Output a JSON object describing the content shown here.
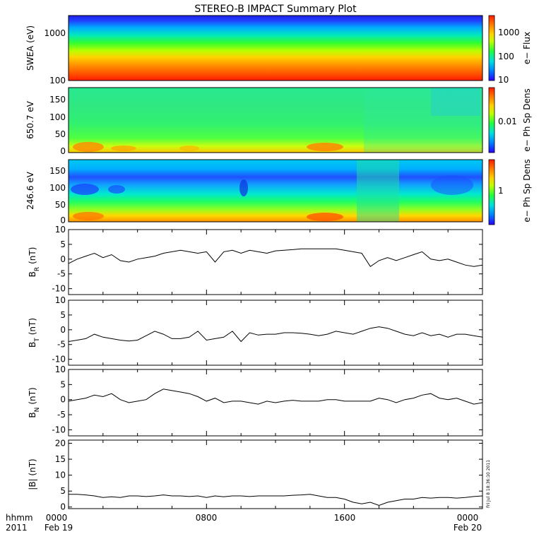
{
  "title": "STEREO-B IMPACT Summary Plot",
  "footer": {
    "row1_left": "hhmm",
    "row2_left": "2011",
    "x_ticks": [
      "0000",
      "0800",
      "1600",
      "0000"
    ],
    "date_start": "Feb 19",
    "date_end": "Feb 20",
    "stamp": "Fri Jul 8 18:36:10 2011"
  },
  "colors": {
    "spectrum": [
      "#1f1fff",
      "#00a0ff",
      "#00e0e0",
      "#30ff30",
      "#c8ff00",
      "#ffd200",
      "#ff8c00",
      "#ff2000"
    ],
    "line": "#000000"
  },
  "chart_data": [
    {
      "type": "heatmap",
      "ylabel": "SWEA (eV)",
      "yscale": "log",
      "ylim": [
        100,
        2000
      ],
      "yticks": [
        "1000",
        "100"
      ],
      "cbar_label": "e− Flux",
      "cbar_ticks": [
        "1000",
        "100",
        "10"
      ]
    },
    {
      "type": "heatmap",
      "ylabel": "650.7 eV",
      "ylim": [
        0,
        180
      ],
      "yticks": [
        "150",
        "100",
        "50",
        "0"
      ],
      "cbar_label": "e− Ph Sp Dens",
      "cbar_ticks": [
        "0.01"
      ]
    },
    {
      "type": "heatmap",
      "ylabel": "246.6 eV",
      "ylim": [
        0,
        180
      ],
      "yticks": [
        "150",
        "100",
        "50",
        "0"
      ],
      "cbar_label": "e− Ph Sp Dens",
      "cbar_ticks": [
        "1"
      ]
    },
    {
      "type": "line",
      "ylabel_main": "B",
      "ylabel_sub": "R",
      "ylabel_unit": "(nT)",
      "ylim": [
        -12,
        10
      ],
      "yticks": [
        "10",
        "5",
        "0",
        "-5",
        "-10"
      ],
      "x_hours": [
        0,
        0.5,
        1,
        1.5,
        2,
        2.5,
        3,
        3.5,
        4,
        4.5,
        5,
        5.5,
        6,
        6.5,
        7,
        7.5,
        8,
        8.5,
        9,
        9.5,
        10,
        10.5,
        11,
        11.5,
        12,
        12.5,
        13,
        13.5,
        14,
        14.5,
        15,
        15.5,
        16,
        16.5,
        17,
        17.5,
        18,
        18.5,
        19,
        19.5,
        20,
        20.5,
        21,
        21.5,
        22,
        22.5,
        23,
        23.5,
        24
      ],
      "values": [
        -1.5,
        0,
        1,
        2,
        0.5,
        1.5,
        -0.5,
        -1,
        0,
        0.5,
        1,
        2,
        2.5,
        3,
        2.5,
        2,
        2.5,
        -1,
        2.5,
        3,
        2,
        3,
        2.5,
        2,
        2.8,
        3,
        3.2,
        3.5,
        3.5,
        3.5,
        3.5,
        3.5,
        3,
        2.5,
        2,
        -2.5,
        -0.5,
        0.5,
        -0.5,
        0.5,
        1.5,
        2.5,
        0,
        -0.5,
        0,
        -1,
        -2,
        -2.5,
        -2
      ]
    },
    {
      "type": "line",
      "ylabel_main": "B",
      "ylabel_sub": "T",
      "ylabel_unit": "(nT)",
      "ylim": [
        -12,
        10
      ],
      "yticks": [
        "10",
        "5",
        "0",
        "-5",
        "-10"
      ],
      "x_hours": [
        0,
        0.5,
        1,
        1.5,
        2,
        2.5,
        3,
        3.5,
        4,
        4.5,
        5,
        5.5,
        6,
        6.5,
        7,
        7.5,
        8,
        8.5,
        9,
        9.5,
        10,
        10.5,
        11,
        11.5,
        12,
        12.5,
        13,
        13.5,
        14,
        14.5,
        15,
        15.5,
        16,
        16.5,
        17,
        17.5,
        18,
        18.5,
        19,
        19.5,
        20,
        20.5,
        21,
        21.5,
        22,
        22.5,
        23,
        23.5,
        24
      ],
      "values": [
        -4,
        -3.5,
        -3,
        -1.5,
        -2.5,
        -3,
        -3.5,
        -3.8,
        -3.5,
        -2,
        -0.5,
        -1.5,
        -3,
        -3,
        -2.5,
        -0.5,
        -3.5,
        -3,
        -2.5,
        -0.5,
        -4,
        -1,
        -1.8,
        -1.5,
        -1.5,
        -1,
        -1,
        -1.2,
        -1.5,
        -2,
        -1.5,
        -0.5,
        -1,
        -1.5,
        -0.5,
        0.5,
        1,
        0.5,
        -0.5,
        -1.5,
        -2,
        -1,
        -2,
        -1.5,
        -2.5,
        -1.5,
        -1.5,
        -2,
        -2.5
      ]
    },
    {
      "type": "line",
      "ylabel_main": "B",
      "ylabel_sub": "N",
      "ylabel_unit": "(nT)",
      "ylim": [
        -12,
        10
      ],
      "yticks": [
        "10",
        "5",
        "0",
        "-5",
        "-10"
      ],
      "x_hours": [
        0,
        0.5,
        1,
        1.5,
        2,
        2.5,
        3,
        3.5,
        4,
        4.5,
        5,
        5.5,
        6,
        6.5,
        7,
        7.5,
        8,
        8.5,
        9,
        9.5,
        10,
        10.5,
        11,
        11.5,
        12,
        12.5,
        13,
        13.5,
        14,
        14.5,
        15,
        15.5,
        16,
        16.5,
        17,
        17.5,
        18,
        18.5,
        19,
        19.5,
        20,
        20.5,
        21,
        21.5,
        22,
        22.5,
        23,
        23.5,
        24
      ],
      "values": [
        -0.5,
        0,
        0.5,
        1.5,
        1,
        2,
        0,
        -1,
        -0.5,
        0,
        2,
        3.5,
        3,
        2.5,
        2,
        1,
        -0.5,
        0.5,
        -1,
        -0.5,
        -0.5,
        -1,
        -1.5,
        -0.5,
        -1,
        -0.5,
        -0.2,
        -0.5,
        -0.5,
        -0.5,
        0,
        0,
        -0.5,
        -0.5,
        -0.5,
        -0.5,
        0.5,
        0,
        -1,
        0,
        0.5,
        1.5,
        2,
        0.5,
        0,
        0.5,
        -0.5,
        -1.5,
        -1
      ]
    },
    {
      "type": "line",
      "ylabel": "|B| (nT)",
      "ylim": [
        -0.5,
        21
      ],
      "yticks": [
        "20",
        "15",
        "10",
        "5",
        "0"
      ],
      "x_hours": [
        0,
        0.5,
        1,
        1.5,
        2,
        2.5,
        3,
        3.5,
        4,
        4.5,
        5,
        5.5,
        6,
        6.5,
        7,
        7.5,
        8,
        8.5,
        9,
        9.5,
        10,
        10.5,
        11,
        11.5,
        12,
        12.5,
        13,
        13.5,
        14,
        14.5,
        15,
        15.5,
        16,
        16.5,
        17,
        17.5,
        18,
        18.5,
        19,
        19.5,
        20,
        20.5,
        21,
        21.5,
        22,
        22.5,
        23,
        23.5,
        24
      ],
      "values": [
        4,
        4,
        3.8,
        3.5,
        3,
        3.2,
        3,
        3.5,
        3.5,
        3.3,
        3.5,
        3.8,
        3.5,
        3.5,
        3.3,
        3.5,
        3,
        3.5,
        3.2,
        3.5,
        3.5,
        3.3,
        3.5,
        3.5,
        3.5,
        3.5,
        3.7,
        3.8,
        4,
        3.5,
        3,
        3,
        2.5,
        1.5,
        1,
        1.5,
        0.5,
        1.5,
        2,
        2.5,
        2.5,
        3,
        2.8,
        3,
        3,
        2.8,
        3,
        3.3,
        3.5
      ]
    }
  ]
}
